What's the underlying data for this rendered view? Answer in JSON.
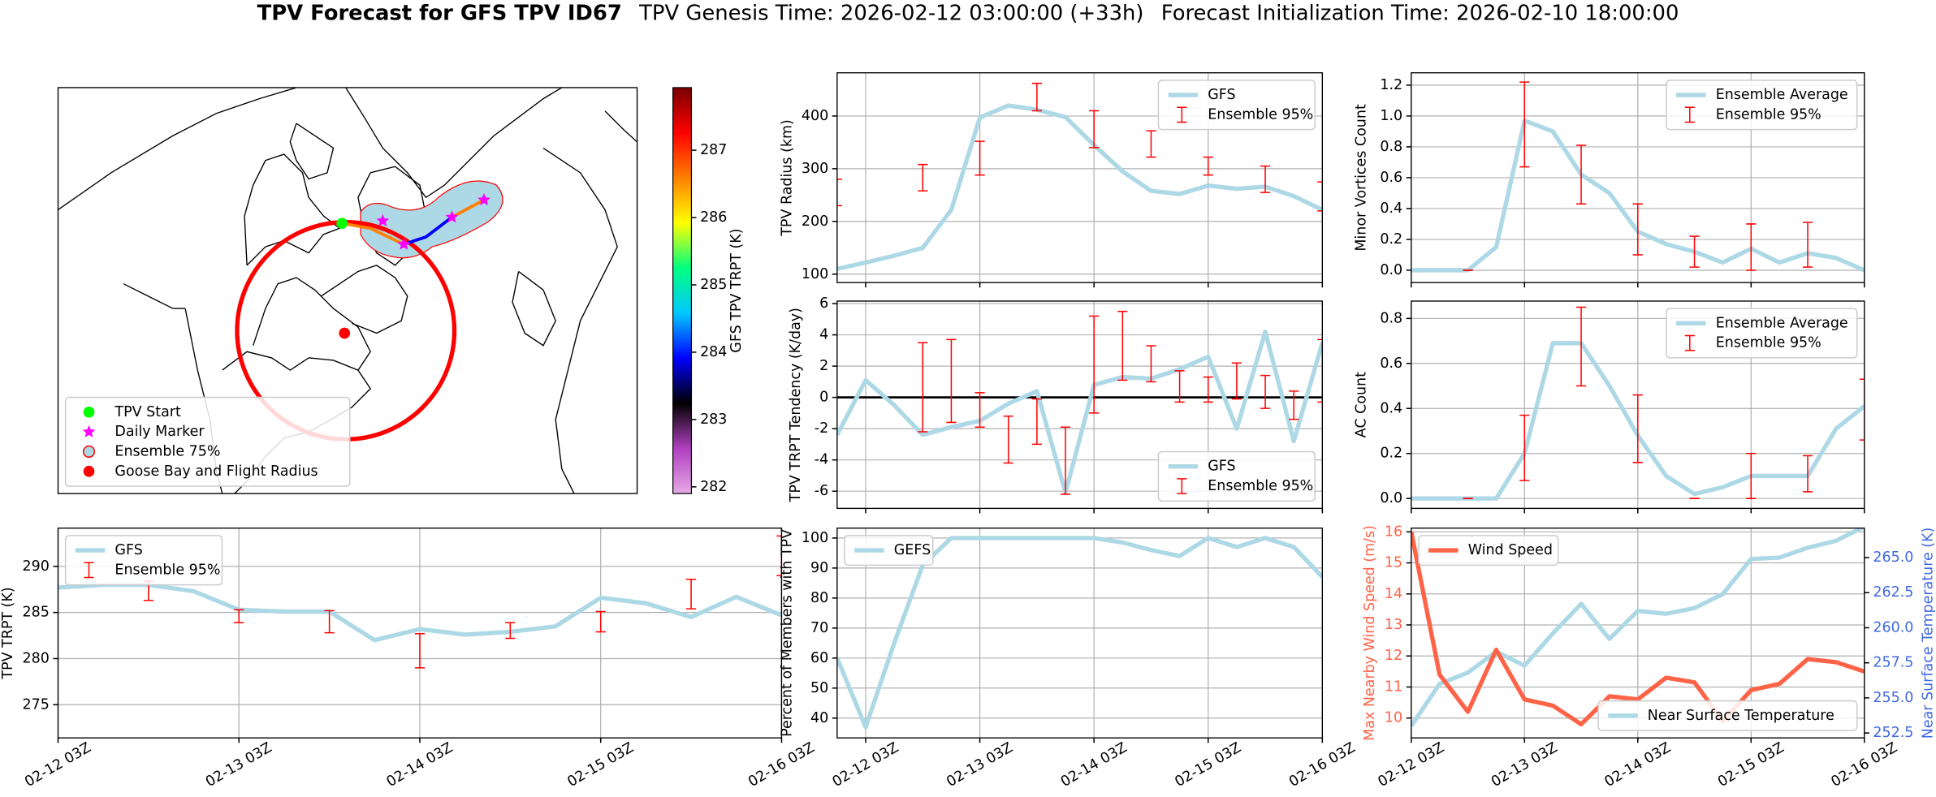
{
  "suptitle": {
    "name": "TPV Forecast for GFS TPV ID67",
    "genesis": "TPV Genesis Time: 2026-02-12 03:00:00 (+33h)",
    "init": "Forecast Initialization Time: 2026-02-10 18:00:00"
  },
  "chart_data": [
    {
      "type": "map",
      "legend": "lower left",
      "legend_items": [
        {
          "label": "TPV Start",
          "color": "#00ff00",
          "marker": "circle"
        },
        {
          "label": "Daily Marker",
          "color": "#ff00ff",
          "marker": "star"
        },
        {
          "label": "Ensemble 75%",
          "color": "#add8e6",
          "edge": "#ff0000",
          "marker": "circle"
        },
        {
          "label": "Goose Bay and Flight Radius",
          "color": "#ff0000",
          "marker": "circle"
        }
      ],
      "colorbar": {
        "label": "GFS TPV TRPT (K)",
        "lim": [
          281.9,
          287.93
        ],
        "ticks": [
          282,
          283,
          284,
          285,
          286,
          287
        ],
        "colors": [
          "#e6a8e6",
          "#b040c0",
          "#000000",
          "#0000ff",
          "#00c8ff",
          "#00ff80",
          "#ffff00",
          "#ff8000",
          "#ff0000",
          "#7a0000"
        ]
      }
    },
    {
      "type": "line",
      "ylabel": "TPV Radius (km)",
      "xlim": [
        -6,
        96
      ],
      "xticks": [
        0,
        24,
        48,
        72,
        96
      ],
      "ylim": [
        84,
        482
      ],
      "yticks": [
        100,
        200,
        300,
        400
      ],
      "grid": true,
      "legend": "upper right",
      "x": [
        -6,
        0,
        6,
        12,
        18,
        24,
        30,
        36,
        42,
        48,
        54,
        60,
        66,
        72,
        78,
        84,
        90,
        96
      ],
      "series": [
        {
          "name": "GFS",
          "color": "#add8e6",
          "values": [
            110,
            122,
            135,
            150,
            222,
            397,
            420,
            412,
            398,
            345,
            295,
            258,
            252,
            268,
            262,
            266,
            248,
            222
          ]
        },
        {
          "name": "Ensemble 95%",
          "color": "#ff0000",
          "x": [
            -6,
            12,
            24,
            36,
            48,
            60,
            72,
            84,
            96
          ],
          "low": [
            230,
            258,
            288,
            410,
            340,
            322,
            288,
            255,
            220
          ],
          "high": [
            280,
            308,
            352,
            462,
            410,
            372,
            322,
            305,
            275
          ]
        }
      ]
    },
    {
      "type": "line",
      "ylabel": "Minor Vortices Count",
      "xlim": [
        0,
        96
      ],
      "xticks": [
        0,
        24,
        48,
        72,
        96
      ],
      "ylim": [
        -0.08,
        1.28
      ],
      "yticks": [
        {
          "value": 0,
          "label": "0.0"
        },
        0.2,
        0.4,
        0.6,
        0.8,
        {
          "value": 1,
          "label": "1.0"
        },
        1.2
      ],
      "grid": true,
      "legend": "upper right",
      "x": [
        0,
        6,
        12,
        18,
        24,
        30,
        36,
        42,
        48,
        54,
        60,
        66,
        72,
        78,
        84,
        90,
        96
      ],
      "series": [
        {
          "name": "Ensemble Average",
          "color": "#add8e6",
          "values": [
            0,
            0,
            0,
            0.15,
            0.97,
            0.9,
            0.62,
            0.5,
            0.25,
            0.17,
            0.12,
            0.05,
            0.14,
            0.05,
            0.11,
            0.08,
            0
          ]
        },
        {
          "name": "Ensemble 95%",
          "color": "#ff0000",
          "x": [
            12,
            24,
            36,
            48,
            60,
            72,
            84
          ],
          "low": [
            0,
            0.67,
            0.43,
            0.1,
            0.02,
            0,
            0.02
          ],
          "high": [
            0,
            1.22,
            0.81,
            0.43,
            0.22,
            0.3,
            0.31
          ]
        }
      ]
    },
    {
      "type": "line",
      "ylabel": "TPV TRPT Tendency (K/day)",
      "xlim": [
        -6,
        96
      ],
      "xticks": [
        0,
        24,
        48,
        72,
        96
      ],
      "ylim": [
        -7.1,
        6.16
      ],
      "yticks": [
        -6,
        -4,
        -2,
        0,
        2,
        4,
        6
      ],
      "grid": true,
      "legend": "lower right",
      "hline": 0,
      "x": [
        -6,
        0,
        6,
        12,
        18,
        24,
        30,
        36,
        42,
        48,
        54,
        60,
        66,
        72,
        78,
        84,
        90,
        96
      ],
      "series": [
        {
          "name": "GFS",
          "color": "#add8e6",
          "values": [
            -2.4,
            1.1,
            -0.5,
            -2.4,
            -1.9,
            -1.5,
            -0.4,
            0.4,
            -6.1,
            0.8,
            1.3,
            1.2,
            1.8,
            2.6,
            -2.0,
            4.2,
            -2.8,
            3.5
          ]
        },
        {
          "name": "Ensemble 95%",
          "color": "#ff0000",
          "x": [
            12,
            18,
            24,
            30,
            36,
            42,
            48,
            54,
            60,
            66,
            72,
            78,
            84,
            90,
            96
          ],
          "low": [
            -2.2,
            -1.6,
            -1.9,
            -4.2,
            -3.0,
            -6.2,
            -1.0,
            1.1,
            1.0,
            -0.3,
            -0.3,
            -0.1,
            -0.7,
            -1.4,
            -0.3
          ],
          "high": [
            3.5,
            3.7,
            0.3,
            -1.2,
            -0.1,
            -1.9,
            5.2,
            5.5,
            3.3,
            1.7,
            1.3,
            2.2,
            1.4,
            0.4,
            3.7
          ]
        }
      ]
    },
    {
      "type": "line",
      "ylabel": "AC Count",
      "xlim": [
        0,
        96
      ],
      "xticks": [
        0,
        24,
        48,
        72,
        96
      ],
      "ylim": [
        -0.044,
        0.877
      ],
      "yticks": [
        {
          "value": 0,
          "label": "0.0"
        },
        0.2,
        0.4,
        0.6,
        0.8
      ],
      "grid": true,
      "legend": "upper right",
      "x": [
        0,
        6,
        12,
        18,
        24,
        30,
        36,
        42,
        48,
        54,
        60,
        66,
        72,
        78,
        84,
        90,
        96
      ],
      "series": [
        {
          "name": "Ensemble Average",
          "color": "#add8e6",
          "values": [
            0,
            0,
            0,
            0,
            0.2,
            0.69,
            0.69,
            0.5,
            0.28,
            0.1,
            0.02,
            0.05,
            0.1,
            0.1,
            0.1,
            0.31,
            0.41
          ]
        },
        {
          "name": "Ensemble 95%",
          "color": "#ff0000",
          "x": [
            12,
            24,
            36,
            48,
            60,
            72,
            84,
            96
          ],
          "low": [
            0,
            0.08,
            0.5,
            0.16,
            0,
            0,
            0.03,
            0.26
          ],
          "high": [
            0,
            0.37,
            0.85,
            0.46,
            0,
            0.2,
            0.19,
            0.53
          ]
        }
      ]
    },
    {
      "type": "line",
      "ylabel": "TPV TRPT (K)",
      "xlim": [
        0,
        96
      ],
      "xticks": [
        {
          "value": 0,
          "label": "02-12 03Z"
        },
        {
          "value": 24,
          "label": "02-13 03Z"
        },
        {
          "value": 48,
          "label": "02-14 03Z"
        },
        {
          "value": 72,
          "label": "02-15 03Z"
        },
        {
          "value": 96,
          "label": "02-16 03Z"
        }
      ],
      "ylim": [
        271.4,
        294.15
      ],
      "yticks": [
        275,
        280,
        285,
        290
      ],
      "grid": true,
      "legend": "upper left",
      "x": [
        0,
        6,
        12,
        18,
        24,
        30,
        36,
        42,
        48,
        54,
        60,
        66,
        72,
        78,
        84,
        90,
        96
      ],
      "series": [
        {
          "name": "GFS",
          "color": "#add8e6",
          "values": [
            287.7,
            288,
            288,
            287.3,
            285.3,
            285.1,
            285.1,
            282,
            283.2,
            282.6,
            282.9,
            283.5,
            286.6,
            286,
            284.5,
            286.7,
            284.7
          ]
        },
        {
          "name": "Ensemble 95%",
          "color": "#ff0000",
          "x": [
            12,
            24,
            36,
            48,
            60,
            72,
            84,
            96
          ],
          "low": [
            286.3,
            283.9,
            282.8,
            279,
            282.2,
            282.9,
            285.4,
            289
          ],
          "high": [
            288.4,
            285.3,
            285.2,
            282.7,
            283.9,
            285.1,
            288.6,
            293.3
          ]
        }
      ]
    },
    {
      "type": "line",
      "ylabel": "Percent of Members with TPV",
      "xlim": [
        -6,
        96
      ],
      "xticks": [
        {
          "value": 0,
          "label": "02-12 03Z"
        },
        {
          "value": 24,
          "label": "02-13 03Z"
        },
        {
          "value": 48,
          "label": "02-14 03Z"
        },
        {
          "value": 72,
          "label": "02-15 03Z"
        },
        {
          "value": 96,
          "label": "02-16 03Z"
        }
      ],
      "ylim": [
        33.4,
        103.3
      ],
      "yticks": [
        40,
        50,
        60,
        70,
        80,
        90,
        100
      ],
      "grid": true,
      "legend": "upper left",
      "x": [
        -6,
        0,
        6,
        12,
        18,
        24,
        30,
        36,
        42,
        48,
        54,
        60,
        66,
        72,
        78,
        84,
        90,
        96
      ],
      "series": [
        {
          "name": "GEFS",
          "color": "#add8e6",
          "values": [
            60,
            37,
            65,
            91,
            100,
            100,
            100,
            100,
            100,
            100,
            98.5,
            96,
            94,
            100,
            97,
            100,
            97,
            87
          ]
        }
      ]
    },
    {
      "type": "line",
      "ylabel": "Max Nearby Wind Speed (m/s)",
      "ylabel_color": "#ff6347",
      "y2label": "Near Surface Temperature (K)",
      "y2label_color": "#4169e1",
      "xlim": [
        0,
        96
      ],
      "xticks": [
        {
          "value": 0,
          "label": "02-12 03Z"
        },
        {
          "value": 24,
          "label": "02-13 03Z"
        },
        {
          "value": 48,
          "label": "02-14 03Z"
        },
        {
          "value": 72,
          "label": "02-15 03Z"
        },
        {
          "value": 96,
          "label": "02-16 03Z"
        }
      ],
      "ylim": [
        9.36,
        16.12
      ],
      "yticks": [
        10,
        11,
        12,
        13,
        14,
        15,
        16
      ],
      "y2lim": [
        252.15,
        267.1
      ],
      "y2ticks": [
        252.5,
        {
          "value": 255,
          "label": "255.0"
        },
        257.5,
        {
          "value": 260,
          "label": "260.0"
        },
        262.5,
        {
          "value": 265,
          "label": "265.0"
        }
      ],
      "grid": true,
      "legend": "upper left",
      "x": [
        0,
        6,
        12,
        18,
        24,
        30,
        36,
        42,
        48,
        54,
        60,
        66,
        72,
        78,
        84,
        90,
        96
      ],
      "series": [
        {
          "name": "Near Surface Temperature",
          "color": "#add8e6",
          "axis": "y2",
          "legend": "lower right",
          "values": [
            253,
            256,
            256.8,
            258.3,
            257.3,
            259.6,
            261.7,
            259.2,
            261.2,
            261,
            261.4,
            262.4,
            264.9,
            265,
            265.7,
            266.2,
            267.2
          ]
        },
        {
          "name": "Wind Speed",
          "color": "#ff6347",
          "values": [
            16,
            11.4,
            10.2,
            12.2,
            10.6,
            10.4,
            9.8,
            10.7,
            10.6,
            11.3,
            11.15,
            9.9,
            10.9,
            11.1,
            11.9,
            11.8,
            11.5
          ]
        }
      ]
    }
  ]
}
